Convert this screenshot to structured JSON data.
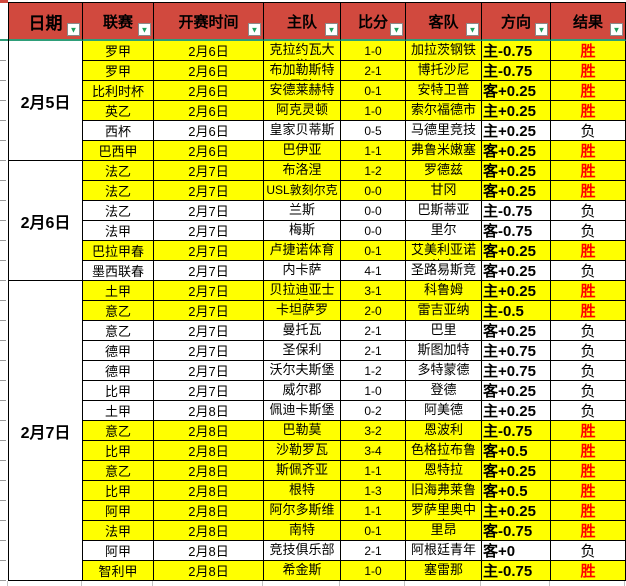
{
  "meta": {
    "win_label": "胜",
    "lose_label": "负"
  },
  "colors": {
    "header_bg": "#D1493E",
    "win_row_bg": "#FFFF00",
    "lose_row_bg": "#FFFFFF",
    "win_text": "#FF0000",
    "header_divider": "#2E9E79",
    "filter_arrow": "#1E9E5C",
    "grid_border": "#000000"
  },
  "header": {
    "columns": [
      "日期",
      "联赛",
      "开赛时间",
      "主队",
      "比分",
      "客队",
      "方向",
      "结果"
    ],
    "filter_glyph": "▼"
  },
  "sections": [
    {
      "date": "2月5日",
      "rows": [
        {
          "league": "罗甲",
          "kickoff": "2月6日",
          "home": "克拉约瓦大学",
          "score": "1-0",
          "away": "加拉茨钢铁",
          "direction": "主-0.75",
          "result": "胜"
        },
        {
          "league": "罗甲",
          "kickoff": "2月6日",
          "home": "布加勒斯特星队",
          "score": "2-1",
          "away": "博托沙尼",
          "direction": "主-0.75",
          "result": "胜"
        },
        {
          "league": "比利时杯",
          "kickoff": "2月6日",
          "home": "安德莱赫特",
          "score": "0-1",
          "away": "安特卫普",
          "direction": "客+0.25",
          "result": "胜"
        },
        {
          "league": "英乙",
          "kickoff": "2月6日",
          "home": "阿克灵顿",
          "score": "1-0",
          "away": "索尔福德市",
          "direction": "主+0.25",
          "result": "胜"
        },
        {
          "league": "西杯",
          "kickoff": "2月6日",
          "home": "皇家贝蒂斯",
          "score": "0-5",
          "away": "马德里竞技",
          "direction": "主+0.25",
          "result": "负"
        },
        {
          "league": "巴西甲",
          "kickoff": "2月6日",
          "home": "巴伊亚",
          "score": "1-1",
          "away": "弗鲁米嫩塞",
          "direction": "客+0.25",
          "result": "胜"
        }
      ]
    },
    {
      "date": "2月6日",
      "rows": [
        {
          "league": "法乙",
          "kickoff": "2月7日",
          "home": "布洛涅",
          "score": "1-2",
          "away": "罗德兹",
          "direction": "客+0.25",
          "result": "胜"
        },
        {
          "league": "法乙",
          "kickoff": "2月7日",
          "home": "USL敦刻尔克",
          "score": "0-0",
          "away": "甘冈",
          "direction": "客+0.25",
          "result": "胜"
        },
        {
          "league": "法乙",
          "kickoff": "2月7日",
          "home": "兰斯",
          "score": "0-0",
          "away": "巴斯蒂亚",
          "direction": "主-0.75",
          "result": "负"
        },
        {
          "league": "法甲",
          "kickoff": "2月7日",
          "home": "梅斯",
          "score": "0-0",
          "away": "里尔",
          "direction": "客-0.75",
          "result": "负"
        },
        {
          "league": "巴拉甲春",
          "kickoff": "2月7日",
          "home": "卢捷诺体育会",
          "score": "0-1",
          "away": "艾美利亚诺体育",
          "direction": "客+0.25",
          "result": "胜"
        },
        {
          "league": "墨西联春",
          "kickoff": "2月7日",
          "home": "内卡萨",
          "score": "4-1",
          "away": "圣路易斯竞技",
          "direction": "客+0.25",
          "result": "负"
        }
      ]
    },
    {
      "date": "2月7日",
      "rows": [
        {
          "league": "土甲",
          "kickoff": "2月7日",
          "home": "贝拉迪亚士邦",
          "score": "3-1",
          "away": "科鲁姆",
          "direction": "主+0.25",
          "result": "胜"
        },
        {
          "league": "意乙",
          "kickoff": "2月7日",
          "home": "卡坦萨罗",
          "score": "2-0",
          "away": "雷吉亚纳",
          "direction": "主-0.5",
          "result": "胜"
        },
        {
          "league": "意乙",
          "kickoff": "2月7日",
          "home": "曼托瓦",
          "score": "2-1",
          "away": "巴里",
          "direction": "客+0.25",
          "result": "负"
        },
        {
          "league": "德甲",
          "kickoff": "2月7日",
          "home": "圣保利",
          "score": "2-1",
          "away": "斯图加特",
          "direction": "主+0.75",
          "result": "负"
        },
        {
          "league": "德甲",
          "kickoff": "2月7日",
          "home": "沃尔夫斯堡",
          "score": "1-2",
          "away": "多特蒙德",
          "direction": "主+0.75",
          "result": "负"
        },
        {
          "league": "比甲",
          "kickoff": "2月7日",
          "home": "威尔郡",
          "score": "1-0",
          "away": "登德",
          "direction": "客+0.25",
          "result": "负"
        },
        {
          "league": "土甲",
          "kickoff": "2月8日",
          "home": "佩迪卡斯堡",
          "score": "0-2",
          "away": "阿美德",
          "direction": "主+0.25",
          "result": "负"
        },
        {
          "league": "意乙",
          "kickoff": "2月8日",
          "home": "巴勒莫",
          "score": "3-2",
          "away": "恩波利",
          "direction": "主-0.75",
          "result": "胜"
        },
        {
          "league": "比甲",
          "kickoff": "2月8日",
          "home": "沙勒罗瓦",
          "score": "3-4",
          "away": "色格拉布鲁日",
          "direction": "客+0.5",
          "result": "胜"
        },
        {
          "league": "意乙",
          "kickoff": "2月8日",
          "home": "斯佩齐亚",
          "score": "1-1",
          "away": "恩特拉",
          "direction": "客+0.25",
          "result": "胜"
        },
        {
          "league": "比甲",
          "kickoff": "2月8日",
          "home": "根特",
          "score": "1-3",
          "away": "旧海弗莱鲁汶",
          "direction": "客+0.5",
          "result": "胜"
        },
        {
          "league": "阿甲",
          "kickoff": "2月8日",
          "home": "阿尔多斯维",
          "score": "1-1",
          "away": "罗萨里奥中央",
          "direction": "主+0.25",
          "result": "胜"
        },
        {
          "league": "法甲",
          "kickoff": "2月8日",
          "home": "南特",
          "score": "0-1",
          "away": "里昂",
          "direction": "客-0.75",
          "result": "胜"
        },
        {
          "league": "阿甲",
          "kickoff": "2月8日",
          "home": "竞技俱乐部",
          "score": "2-1",
          "away": "阿根廷青年",
          "direction": "客+0",
          "result": "负"
        },
        {
          "league": "智利甲",
          "kickoff": "2月8日",
          "home": "希金斯",
          "score": "1-0",
          "away": "塞雷那",
          "direction": "主-0.75",
          "result": "胜"
        }
      ]
    }
  ]
}
